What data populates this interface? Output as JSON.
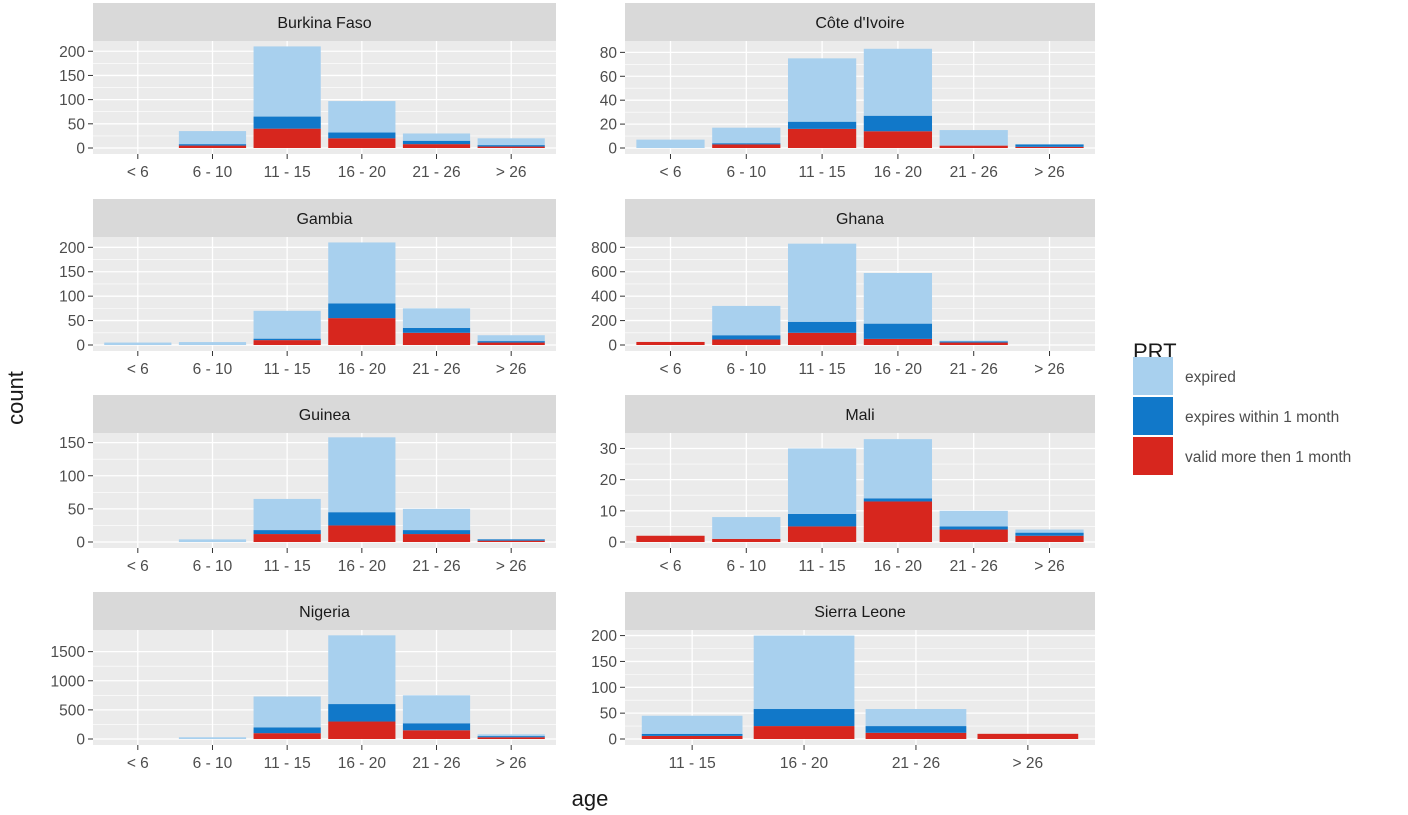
{
  "colors": {
    "panel_bg": "#ebebeb",
    "strip_bg": "#d9d9d9",
    "grid": "#ffffff",
    "tick_text": "#4d4d4d",
    "axis_title": "#1a1a1a",
    "expired": "#a8d0ee",
    "expires_within": "#1178c9",
    "valid": "#d7261e"
  },
  "chart_data": {
    "type": "bar",
    "stacked": true,
    "faceted": true,
    "xlabel": "age",
    "ylabel": "count",
    "grid": true,
    "legend": {
      "title": "PRT",
      "position": "right",
      "entries": [
        {
          "key": "expired",
          "label": "expired"
        },
        {
          "key": "expires_within",
          "label": "expires within 1 month"
        },
        {
          "key": "valid",
          "label": "valid more then 1 month"
        }
      ]
    },
    "panels": [
      {
        "title": "Burkina Faso",
        "categories": [
          "< 6",
          "6 - 10",
          "11 - 15",
          "16 - 20",
          "21 - 26",
          "> 26"
        ],
        "ylim": [
          0,
          215
        ],
        "yticks": [
          0,
          50,
          100,
          150,
          200
        ],
        "series": [
          {
            "name": "valid more then 1 month",
            "key": "valid",
            "values": [
              0,
              5,
              40,
              20,
              8,
              3
            ]
          },
          {
            "name": "expires within 1 month",
            "key": "expires_within",
            "values": [
              0,
              3,
              25,
              12,
              7,
              3
            ]
          },
          {
            "name": "expired",
            "key": "expired",
            "values": [
              0,
              27,
              145,
              65,
              15,
              14
            ]
          }
        ]
      },
      {
        "title": "Côte d'Ivoire",
        "categories": [
          "< 6",
          "6 - 10",
          "11 - 15",
          "16 - 20",
          "21 - 26",
          "> 26"
        ],
        "ylim": [
          0,
          87
        ],
        "yticks": [
          0,
          20,
          40,
          60,
          80
        ],
        "series": [
          {
            "name": "valid more then 1 month",
            "key": "valid",
            "values": [
              0,
              3,
              16,
              14,
              2,
              1
            ]
          },
          {
            "name": "expires within 1 month",
            "key": "expires_within",
            "values": [
              0,
              1,
              6,
              13,
              0,
              2
            ]
          },
          {
            "name": "expired",
            "key": "expired",
            "values": [
              7,
              13,
              53,
              56,
              13,
              0
            ]
          }
        ]
      },
      {
        "title": "Gambia",
        "categories": [
          "< 6",
          "6 - 10",
          "11 - 15",
          "16 - 20",
          "21 - 26",
          "> 26"
        ],
        "ylim": [
          0,
          215
        ],
        "yticks": [
          0,
          50,
          100,
          150,
          200
        ],
        "series": [
          {
            "name": "valid more then 1 month",
            "key": "valid",
            "values": [
              0,
              0,
              10,
              55,
              25,
              5
            ]
          },
          {
            "name": "expires within 1 month",
            "key": "expires_within",
            "values": [
              0,
              0,
              3,
              30,
              10,
              3
            ]
          },
          {
            "name": "expired",
            "key": "expired",
            "values": [
              5,
              6,
              57,
              125,
              40,
              12
            ]
          }
        ]
      },
      {
        "title": "Ghana",
        "categories": [
          "< 6",
          "6 - 10",
          "11 - 15",
          "16 - 20",
          "21 - 26",
          "> 26"
        ],
        "ylim": [
          0,
          860
        ],
        "yticks": [
          0,
          200,
          400,
          600,
          800
        ],
        "series": [
          {
            "name": "valid more then 1 month",
            "key": "valid",
            "values": [
              25,
              45,
              100,
              50,
              20,
              0
            ]
          },
          {
            "name": "expires within 1 month",
            "key": "expires_within",
            "values": [
              0,
              35,
              90,
              125,
              10,
              0
            ]
          },
          {
            "name": "expired",
            "key": "expired",
            "values": [
              0,
              240,
              640,
              415,
              5,
              0
            ]
          }
        ]
      },
      {
        "title": "Guinea",
        "categories": [
          "< 6",
          "6 - 10",
          "11 - 15",
          "16 - 20",
          "21 - 26",
          "> 26"
        ],
        "ylim": [
          0,
          160
        ],
        "yticks": [
          0,
          50,
          100,
          150
        ],
        "series": [
          {
            "name": "valid more then 1 month",
            "key": "valid",
            "values": [
              0,
              0,
              12,
              25,
              12,
              2
            ]
          },
          {
            "name": "expires within 1 month",
            "key": "expires_within",
            "values": [
              0,
              0,
              6,
              20,
              6,
              2
            ]
          },
          {
            "name": "expired",
            "key": "expired",
            "values": [
              0,
              4,
              47,
              113,
              32,
              0
            ]
          }
        ]
      },
      {
        "title": "Mali",
        "categories": [
          "< 6",
          "6 - 10",
          "11 - 15",
          "16 - 20",
          "21 - 26",
          "> 26"
        ],
        "ylim": [
          0,
          34
        ],
        "yticks": [
          0,
          10,
          20,
          30
        ],
        "series": [
          {
            "name": "valid more then 1 month",
            "key": "valid",
            "values": [
              2,
              1,
              5,
              13,
              4,
              2
            ]
          },
          {
            "name": "expires within 1 month",
            "key": "expires_within",
            "values": [
              0,
              0,
              4,
              1,
              1,
              1
            ]
          },
          {
            "name": "expired",
            "key": "expired",
            "values": [
              0,
              7,
              21,
              19,
              5,
              1
            ]
          }
        ]
      },
      {
        "title": "Nigeria",
        "categories": [
          "< 6",
          "6 - 10",
          "11 - 15",
          "16 - 20",
          "21 - 26",
          "> 26"
        ],
        "ylim": [
          0,
          1820
        ],
        "yticks": [
          0,
          500,
          1000,
          1500
        ],
        "series": [
          {
            "name": "valid more then 1 month",
            "key": "valid",
            "values": [
              0,
              0,
              100,
              300,
              150,
              30
            ]
          },
          {
            "name": "expires within 1 month",
            "key": "expires_within",
            "values": [
              0,
              0,
              100,
              300,
              120,
              20
            ]
          },
          {
            "name": "expired",
            "key": "expired",
            "values": [
              0,
              30,
              530,
              1180,
              480,
              30
            ]
          }
        ]
      },
      {
        "title": "Sierra Leone",
        "categories": [
          "11 - 15",
          "16 - 20",
          "21 - 26",
          "> 26"
        ],
        "ylim": [
          0,
          205
        ],
        "yticks": [
          0,
          50,
          100,
          150,
          200
        ],
        "series": [
          {
            "name": "valid more then 1 month",
            "key": "valid",
            "values": [
              6,
              25,
              12,
              10
            ]
          },
          {
            "name": "expires within 1 month",
            "key": "expires_within",
            "values": [
              4,
              33,
              13,
              0
            ]
          },
          {
            "name": "expired",
            "key": "expired",
            "values": [
              35,
              142,
              33,
              0
            ]
          }
        ]
      }
    ]
  }
}
